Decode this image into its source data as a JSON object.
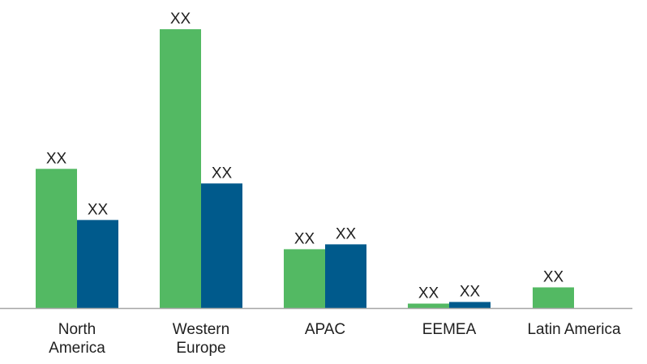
{
  "chart_data": {
    "type": "bar",
    "categories": [
      [
        "North",
        "America"
      ],
      [
        "Western",
        "Europe"
      ],
      [
        "APAC"
      ],
      [
        "EEMEA"
      ],
      [
        "Latin America"
      ]
    ],
    "series": [
      {
        "color": "#53b963",
        "values": [
          172,
          344,
          73,
          6,
          26
        ],
        "data_labels": [
          "XX",
          "XX",
          "XX",
          "XX",
          "XX"
        ]
      },
      {
        "color": "#005a8c",
        "values": [
          109,
          154,
          79,
          8,
          null
        ],
        "data_labels": [
          "XX",
          "XX",
          "XX",
          "XX",
          null
        ]
      }
    ],
    "ylim": [
      0,
      380
    ],
    "grid": false,
    "y_axis_visible": false,
    "axis_color": "#a6a6a6",
    "label_color": "#1f1f1f"
  }
}
